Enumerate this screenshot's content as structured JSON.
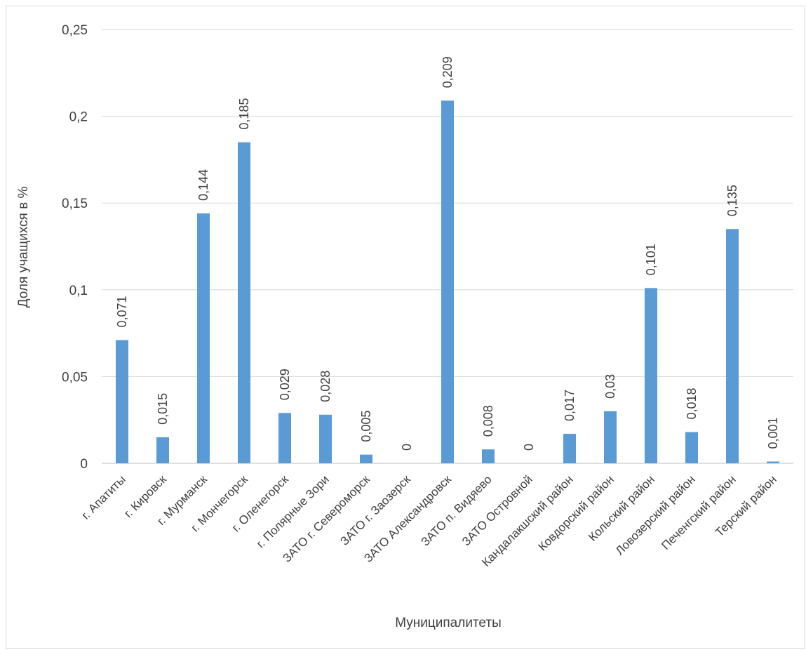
{
  "chart_data": {
    "type": "bar",
    "title": "",
    "xlabel": "Муниципалитеты",
    "ylabel": "Доля учащихся в %",
    "ylim": [
      0,
      0.25
    ],
    "yticks": [
      0,
      0.05,
      0.1,
      0.15,
      0.2,
      0.25
    ],
    "ytick_labels": [
      "0",
      "0,05",
      "0,1",
      "0,15",
      "0,2",
      "0,25"
    ],
    "grid": true,
    "legend": "none",
    "categories": [
      "г. Апатиты",
      "г. Кировск",
      "г. Мурманск",
      "г. Мончегорск",
      "г. Оленегорск",
      "г. Полярные Зори",
      "ЗАТО г. Североморск",
      "ЗАТО г. Заозерск",
      "ЗАТО Александровск",
      "ЗАТО п. Видяево",
      "ЗАТО Островной",
      "Кандалакшский район",
      "Ковдорский район",
      "Кольский район",
      "Ловозерский район",
      "Печенгский район",
      "Терский район"
    ],
    "values": [
      0.071,
      0.015,
      0.144,
      0.185,
      0.029,
      0.028,
      0.005,
      0,
      0.209,
      0.008,
      0,
      0.017,
      0.03,
      0.101,
      0.018,
      0.135,
      0.001
    ],
    "data_labels": [
      "0,071",
      "0,015",
      "0,144",
      "0,185",
      "0,029",
      "0,028",
      "0,005",
      "0",
      "0,209",
      "0,008",
      "0",
      "0,017",
      "0,03",
      "0,101",
      "0,018",
      "0,135",
      "0,001"
    ],
    "colors": {
      "bar": "#5b9bd5",
      "grid": "#d9d9d9",
      "text": "#404040"
    }
  }
}
